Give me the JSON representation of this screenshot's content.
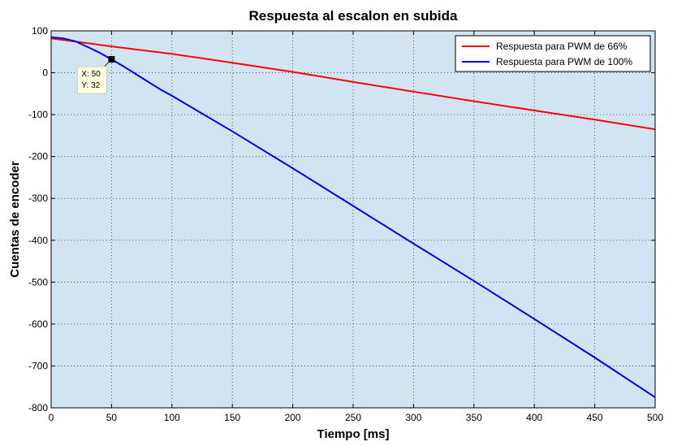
{
  "chart_data": {
    "type": "line",
    "title": "Respuesta al escalon en subida",
    "xlabel": "Tiempo [ms]",
    "ylabel": "Cuentas de encoder",
    "xlim": [
      0,
      500
    ],
    "ylim": [
      -800,
      100
    ],
    "xticks": [
      0,
      50,
      100,
      150,
      200,
      250,
      300,
      350,
      400,
      450,
      500
    ],
    "yticks": [
      100,
      0,
      -100,
      -200,
      -300,
      -400,
      -500,
      -600,
      -700,
      -800
    ],
    "grid": true,
    "background_color": "#d0e4f2",
    "legend_position": "top-right",
    "series": [
      {
        "name": "Respuesta para PWM de 66%",
        "color": "#ff0000",
        "x": [
          0,
          50,
          100,
          150,
          200,
          250,
          300,
          350,
          400,
          450,
          500
        ],
        "y": [
          82,
          63,
          45,
          24,
          2,
          -22,
          -45,
          -68,
          -90,
          -112,
          -135
        ]
      },
      {
        "name": "Respuesta para PWM de 100%",
        "color": "#0000ee",
        "x": [
          0,
          10,
          20,
          30,
          40,
          50,
          60,
          70,
          80,
          90,
          100,
          150,
          200,
          250,
          300,
          350,
          400,
          450,
          500
        ],
        "y": [
          85,
          82,
          75,
          62,
          48,
          32,
          15,
          -3,
          -21,
          -39,
          -55,
          -140,
          -228,
          -318,
          -408,
          -497,
          -588,
          -680,
          -775
        ]
      }
    ],
    "datatip": {
      "x_label": "X: 50",
      "y_label": "Y: 32",
      "x": 50,
      "y": 32
    }
  }
}
